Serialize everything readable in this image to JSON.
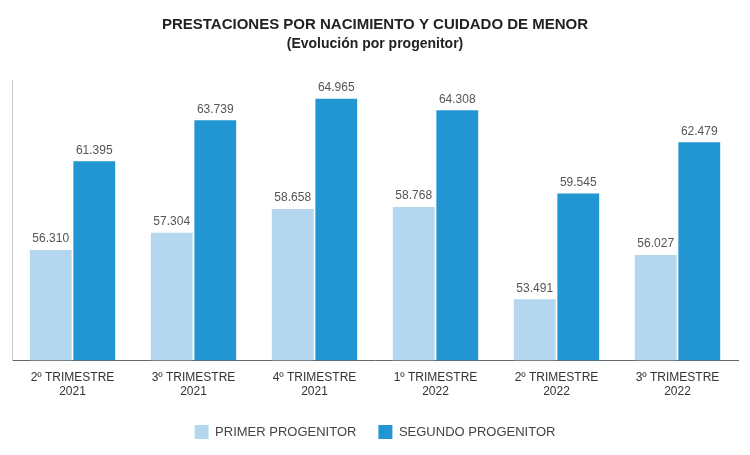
{
  "chart_data": {
    "type": "bar",
    "title": "PRESTACIONES POR NACIMIENTO Y CUIDADO DE MENOR",
    "subtitle": "(Evolución por progenitor)",
    "categories": [
      "2º TRIMESTRE 2021",
      "3º TRIMESTRE 2021",
      "4º TRIMESTRE 2021",
      "1º TRIMESTRE 2022",
      "2º TRIMESTRE 2022",
      "3º TRIMESTRE 2022"
    ],
    "series": [
      {
        "name": "PRIMER PROGENITOR",
        "color": "#b4d6ee",
        "values": [
          56310,
          57304,
          58658,
          58768,
          53491,
          56027
        ],
        "value_labels": [
          "56.310",
          "57.304",
          "58.658",
          "58.768",
          "53.491",
          "56.027"
        ]
      },
      {
        "name": "SEGUNDO PROGENITOR",
        "color": "#2196d3",
        "values": [
          61395,
          63739,
          64965,
          64308,
          59545,
          62479
        ],
        "value_labels": [
          "61.395",
          "63.739",
          "64.965",
          "64.308",
          "59.545",
          "62.479"
        ]
      }
    ],
    "ylim": [
      50000,
      66000
    ],
    "grid": false,
    "legend": "bottom",
    "data_labels": true,
    "tick_labels": "x"
  }
}
